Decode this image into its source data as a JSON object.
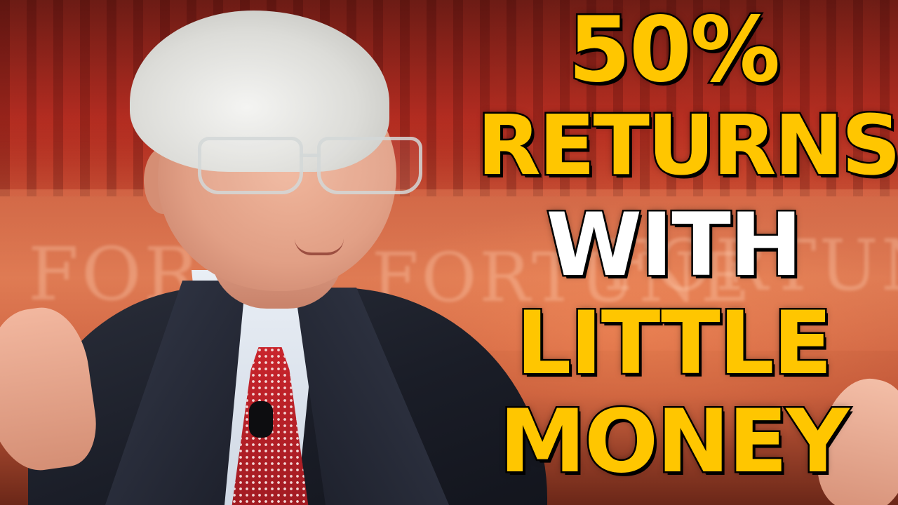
{
  "headline": {
    "line1": "50%",
    "line2": "RETURNS",
    "line3": "WITH",
    "line4": "LITTLE",
    "line5": "MONEY"
  },
  "backdrop": {
    "sign1": "FORT",
    "sign2": "FORTUNE",
    "sign3": "FORTUN"
  },
  "colors": {
    "headline_yellow": "#ffc600",
    "headline_white": "#ffffff",
    "outline": "#000000",
    "tie_red": "#c9252c",
    "suit": "#1a1d27"
  }
}
